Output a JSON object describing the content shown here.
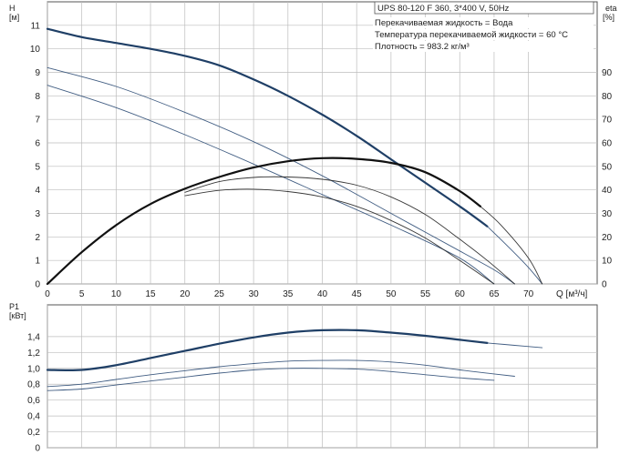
{
  "chart_data": [
    {
      "type": "line",
      "title": "UPS 80-120 F 360, 3*400 V, 50Hz",
      "annotations": [
        "Перекачиваемая жидкость = Вода",
        "Температура перекачиваемой жидкости = 60 °C",
        "Плотность = 983.2 кг/м³"
      ],
      "xlabel": "Q [м³/ч]",
      "ylabel_line1": "H",
      "ylabel_line2": "[м]",
      "y2label_line1": "eta",
      "y2label_line2": "[%]",
      "xlim": [
        0,
        80
      ],
      "ylim": [
        0,
        12
      ],
      "y2lim": [
        0,
        120
      ],
      "x_ticks": [
        0,
        5,
        10,
        15,
        20,
        25,
        30,
        35,
        40,
        45,
        50,
        55,
        60,
        65,
        70
      ],
      "y_ticks": [
        0,
        1,
        2,
        3,
        4,
        5,
        6,
        7,
        8,
        9,
        10,
        11
      ],
      "y2_ticks": [
        0,
        10,
        20,
        30,
        40,
        50,
        60,
        70,
        80,
        90
      ],
      "grid": true,
      "series": [
        {
          "axis": "H",
          "bold": true,
          "x": [
            0,
            5,
            10,
            15,
            20,
            25,
            30,
            35,
            40,
            45,
            50,
            55,
            60,
            64
          ],
          "y": [
            10.85,
            10.5,
            10.25,
            10.0,
            9.7,
            9.3,
            8.7,
            8.0,
            7.2,
            6.3,
            5.3,
            4.3,
            3.3,
            2.45
          ]
        },
        {
          "axis": "H",
          "bold": false,
          "x": [
            64,
            67,
            70,
            72
          ],
          "y": [
            2.45,
            1.6,
            0.7,
            0.0
          ]
        },
        {
          "axis": "H",
          "bold": false,
          "x": [
            0,
            10,
            20,
            30,
            40,
            50,
            60,
            65,
            68
          ],
          "y": [
            9.2,
            8.4,
            7.3,
            6.05,
            4.6,
            3.0,
            1.4,
            0.6,
            0.0
          ]
        },
        {
          "axis": "H",
          "bold": false,
          "x": [
            0,
            10,
            20,
            30,
            40,
            50,
            60,
            65
          ],
          "y": [
            8.45,
            7.5,
            6.35,
            5.1,
            3.8,
            2.5,
            1.1,
            0.0
          ]
        },
        {
          "axis": "eta",
          "bold": true,
          "x": [
            0,
            5,
            10,
            15,
            20,
            25,
            30,
            35,
            40,
            45,
            50,
            55,
            60,
            63
          ],
          "y": [
            0,
            13.5,
            25,
            34,
            40.5,
            45.5,
            49.5,
            52.2,
            53.5,
            53.2,
            51.5,
            47.5,
            39.5,
            33
          ]
        },
        {
          "axis": "eta",
          "bold": false,
          "x": [
            63,
            66,
            70,
            72
          ],
          "y": [
            33,
            25,
            11,
            0
          ]
        },
        {
          "axis": "eta",
          "bold": false,
          "x": [
            20,
            25,
            30,
            35,
            40,
            45,
            50,
            55,
            60,
            64,
            68
          ],
          "y": [
            39,
            43.5,
            45.3,
            45.5,
            44.5,
            42,
            37,
            29.5,
            19,
            10,
            0
          ]
        },
        {
          "axis": "eta",
          "bold": false,
          "x": [
            20,
            25,
            30,
            35,
            40,
            45,
            50,
            55,
            60,
            65
          ],
          "y": [
            37.5,
            39.8,
            40.3,
            39.3,
            37,
            33,
            27,
            19.5,
            10,
            0
          ]
        }
      ]
    },
    {
      "type": "line",
      "ylabel_line1": "P1",
      "ylabel_line2": "[кВт]",
      "xlim": [
        0,
        80
      ],
      "ylim": [
        0,
        1.8
      ],
      "y_ticks": [
        0,
        0.2,
        0.4,
        0.6,
        0.8,
        1.0,
        1.2,
        1.4
      ],
      "y_tick_labels": [
        "0",
        "0,2",
        "0,4",
        "0,6",
        "0,8",
        "1,0",
        "1,2",
        "1,4"
      ],
      "x_ticks": [
        0,
        5,
        10,
        15,
        20,
        25,
        30,
        35,
        40,
        45,
        50,
        55,
        60,
        65,
        70
      ],
      "grid": true,
      "series": [
        {
          "bold": true,
          "x": [
            0,
            5,
            10,
            15,
            20,
            25,
            30,
            35,
            40,
            45,
            50,
            55,
            60,
            64
          ],
          "y": [
            0.98,
            0.98,
            1.04,
            1.13,
            1.22,
            1.31,
            1.39,
            1.45,
            1.48,
            1.48,
            1.45,
            1.41,
            1.36,
            1.32
          ]
        },
        {
          "bold": false,
          "x": [
            64,
            68,
            72
          ],
          "y": [
            1.32,
            1.29,
            1.26
          ]
        },
        {
          "bold": false,
          "x": [
            0,
            5,
            10,
            15,
            20,
            25,
            30,
            35,
            40,
            45,
            50,
            55,
            60,
            65,
            68
          ],
          "y": [
            0.77,
            0.8,
            0.86,
            0.92,
            0.97,
            1.02,
            1.06,
            1.09,
            1.1,
            1.1,
            1.08,
            1.04,
            0.98,
            0.93,
            0.9
          ]
        },
        {
          "bold": false,
          "x": [
            0,
            5,
            10,
            15,
            20,
            25,
            30,
            35,
            40,
            45,
            50,
            55,
            60,
            65
          ],
          "y": [
            0.72,
            0.74,
            0.79,
            0.84,
            0.89,
            0.94,
            0.98,
            1.0,
            1.0,
            0.99,
            0.96,
            0.92,
            0.88,
            0.85
          ]
        }
      ]
    }
  ]
}
